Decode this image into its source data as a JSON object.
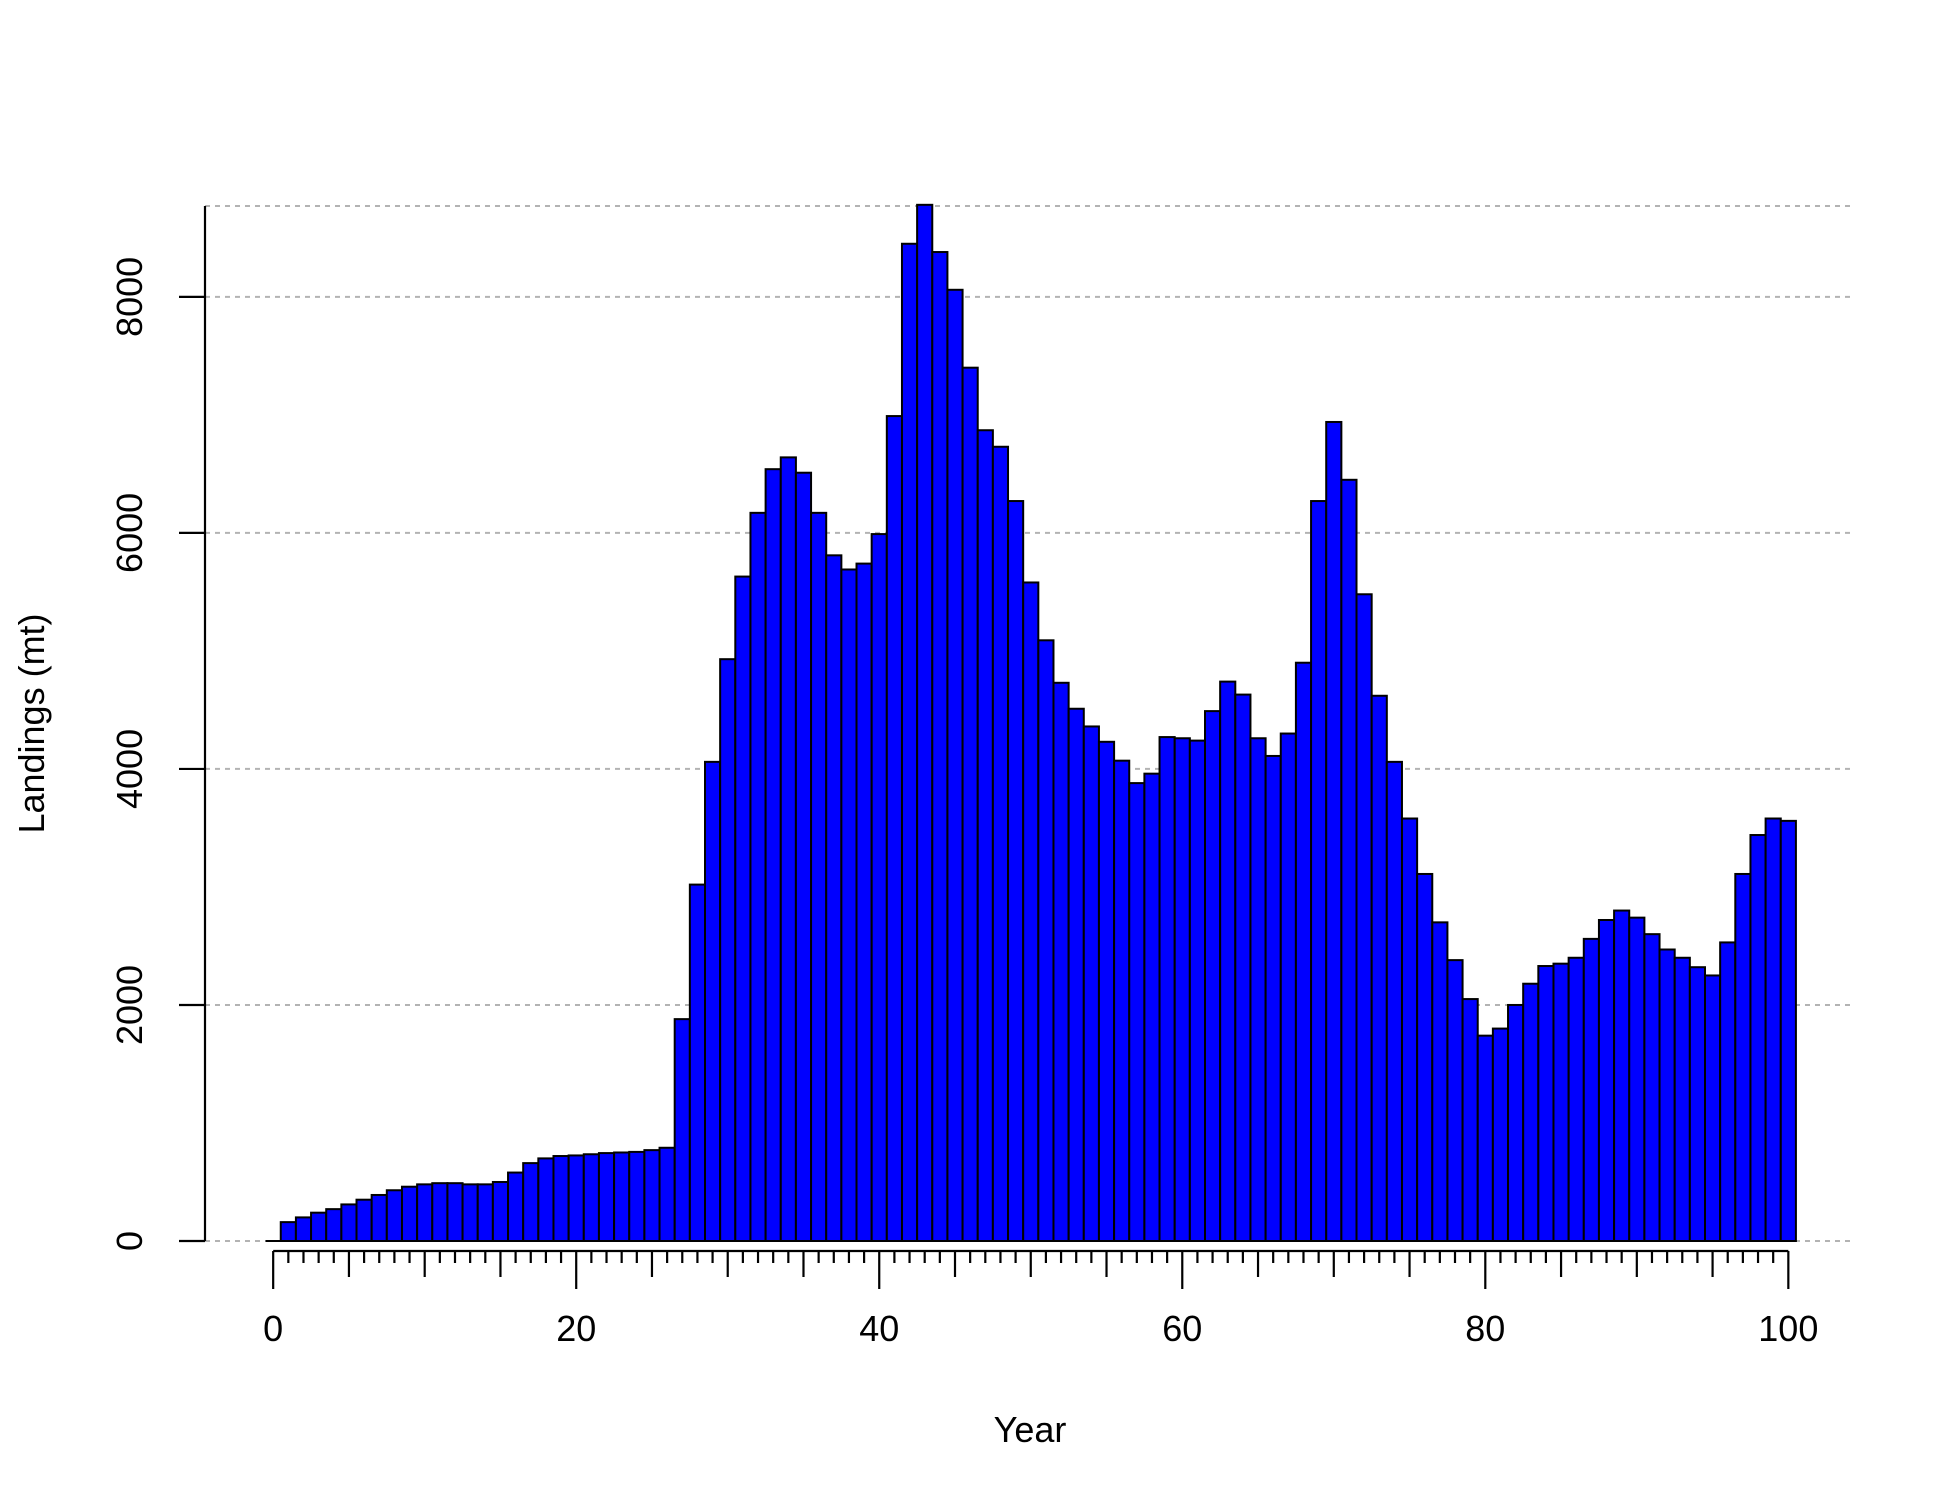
{
  "chart_data": {
    "type": "bar",
    "title": "",
    "xlabel": "Year",
    "ylabel": "Landings (mt)",
    "xlim": [
      -4.5,
      104.4
    ],
    "ylim": [
      0,
      8770
    ],
    "x_ticks": [
      0,
      20,
      40,
      60,
      80,
      100
    ],
    "x_tick_labels": [
      "0",
      "20",
      "40",
      "60",
      "80",
      "100"
    ],
    "y_ticks": [
      0,
      2000,
      4000,
      6000,
      8000
    ],
    "y_tick_labels": [
      "0",
      "2000",
      "4000",
      "6000",
      "8000"
    ],
    "grid": "horizontal dotted",
    "bar_color": "#0000ff",
    "bar_edge_color": "#000000",
    "grid_color": "#b3b3b3",
    "years": [
      1,
      2,
      3,
      4,
      5,
      6,
      7,
      8,
      9,
      10,
      11,
      12,
      13,
      14,
      15,
      16,
      17,
      18,
      19,
      20,
      21,
      22,
      23,
      24,
      25,
      26,
      27,
      28,
      29,
      30,
      31,
      32,
      33,
      34,
      35,
      36,
      37,
      38,
      39,
      40,
      41,
      42,
      43,
      44,
      45,
      46,
      47,
      48,
      49,
      50,
      51,
      52,
      53,
      54,
      55,
      56,
      57,
      58,
      59,
      60,
      61,
      62,
      63,
      64,
      65,
      66,
      67,
      68,
      69,
      70,
      71,
      72,
      73,
      74,
      75,
      76,
      77,
      78,
      79,
      80,
      81,
      82,
      83,
      84,
      85,
      86,
      87,
      88,
      89,
      90,
      91,
      92,
      93,
      94,
      95,
      96,
      97,
      98,
      99,
      100
    ],
    "values": [
      160,
      200,
      240,
      270,
      310,
      350,
      390,
      430,
      460,
      480,
      490,
      490,
      480,
      480,
      500,
      580,
      660,
      700,
      720,
      725,
      735,
      745,
      750,
      755,
      770,
      790,
      1880,
      3020,
      4060,
      4930,
      5630,
      6170,
      6540,
      6640,
      6510,
      6170,
      5810,
      5690,
      5740,
      5990,
      6990,
      8450,
      8780,
      8380,
      8060,
      7400,
      6870,
      6730,
      6270,
      5580,
      5090,
      4730,
      4510,
      4360,
      4230,
      4070,
      3880,
      3960,
      4270,
      4260,
      4240,
      4490,
      4740,
      4630,
      4260,
      4110,
      4300,
      4900,
      6270,
      6940,
      6450,
      5480,
      4620,
      4060,
      3580,
      3110,
      2700,
      2380,
      2050,
      1740,
      1800,
      2000,
      2180,
      2330,
      2350,
      2400,
      2560,
      2720,
      2800,
      2740,
      2600,
      2470,
      2400,
      2320,
      2250,
      2530,
      3110,
      3440,
      3580,
      3560
    ]
  }
}
